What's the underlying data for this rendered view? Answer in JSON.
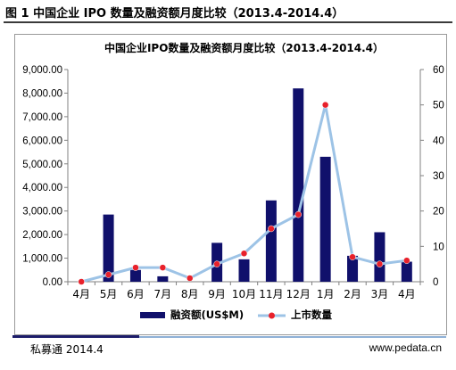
{
  "figure_title": "图 1  中国企业 IPO 数量及融资额月度比较（2013.4-2014.4）",
  "footer": {
    "source": "私募通 2014.4",
    "website": "www.pedata.cn"
  },
  "colors": {
    "bar": "#10106b",
    "line": "#9dc3e6",
    "marker": "#e8212b",
    "axis": "#808080"
  },
  "chart_data": {
    "type": "bar+line",
    "title": "中国企业IPO数量及融资额月度比较（2013.4-2014.4）",
    "categories": [
      "4月",
      "5月",
      "6月",
      "7月",
      "8月",
      "9月",
      "10月",
      "11月",
      "12月",
      "1月",
      "2月",
      "3月",
      "4月"
    ],
    "y_left": {
      "ylim": [
        0,
        9000
      ],
      "ticks": [
        "0.00",
        "1,000.00",
        "2,000.00",
        "3,000.00",
        "4,000.00",
        "5,000.00",
        "6,000.00",
        "7,000.00",
        "8,000.00",
        "9,000.00"
      ]
    },
    "y_right": {
      "ylim": [
        0,
        60
      ],
      "ticks": [
        "0",
        "10",
        "20",
        "30",
        "40",
        "50",
        "60"
      ]
    },
    "series": [
      {
        "name": "融资额(US$M)",
        "type": "bar",
        "axis": "left",
        "values": [
          0,
          2850,
          500,
          230,
          0,
          1650,
          950,
          3450,
          8200,
          5300,
          1100,
          2100,
          850
        ]
      },
      {
        "name": "上市数量",
        "type": "line",
        "axis": "right",
        "values": [
          0,
          2,
          4,
          4,
          1,
          5,
          8,
          15,
          19,
          50,
          7,
          5,
          6
        ]
      }
    ],
    "legend": "bottom"
  }
}
